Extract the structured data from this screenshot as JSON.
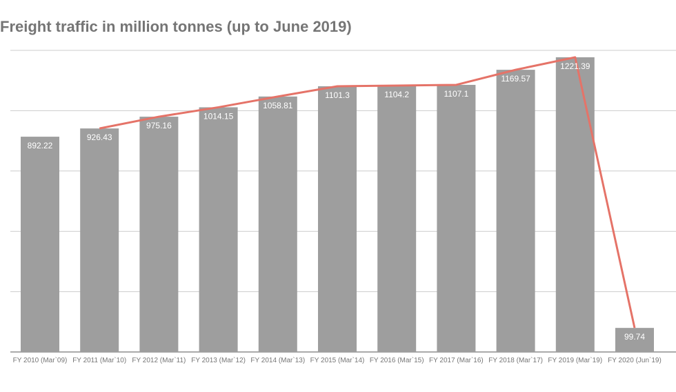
{
  "chart_data": {
    "type": "bar",
    "title": "Freight traffic in million tonnes (up to June 2019)",
    "categories": [
      "FY 2010 (Mar`09)",
      "FY 2011 (Mar`10)",
      "FY 2012 (Mar`11)",
      "FY 2013 (Mar`12)",
      "FY 2014 (Mar`13)",
      "FY 2015 (Mar`14)",
      "FY 2016 (Mar`15)",
      "FY 2017 (Mar`16)",
      "FY 2018 (Mar`17)",
      "FY 2019 (Mar`19)",
      "FY 2020 (Jun`19)"
    ],
    "series": [
      {
        "type": "bar",
        "values": [
          892.22,
          926.43,
          975.16,
          1014.15,
          1058.81,
          1101.3,
          1104.2,
          1107.1,
          1169.57,
          1221.39,
          99.74
        ],
        "data_labels": [
          "892.22",
          "926.43",
          "975.16",
          "1014.15",
          "1058.81",
          "1101.3",
          "1104.2",
          "1107.1",
          "1169.57",
          "1221.39",
          "99.74"
        ],
        "color": "#9e9e9e"
      },
      {
        "type": "line",
        "values": [
          null,
          926.43,
          975.16,
          1014.15,
          1058.81,
          1101.3,
          1104.2,
          1107.1,
          1169.57,
          1221.39,
          99.74
        ],
        "color": "#e57368"
      }
    ],
    "ylim": [
      0,
      1250
    ],
    "grid": true,
    "xlabel": "",
    "ylabel": ""
  }
}
